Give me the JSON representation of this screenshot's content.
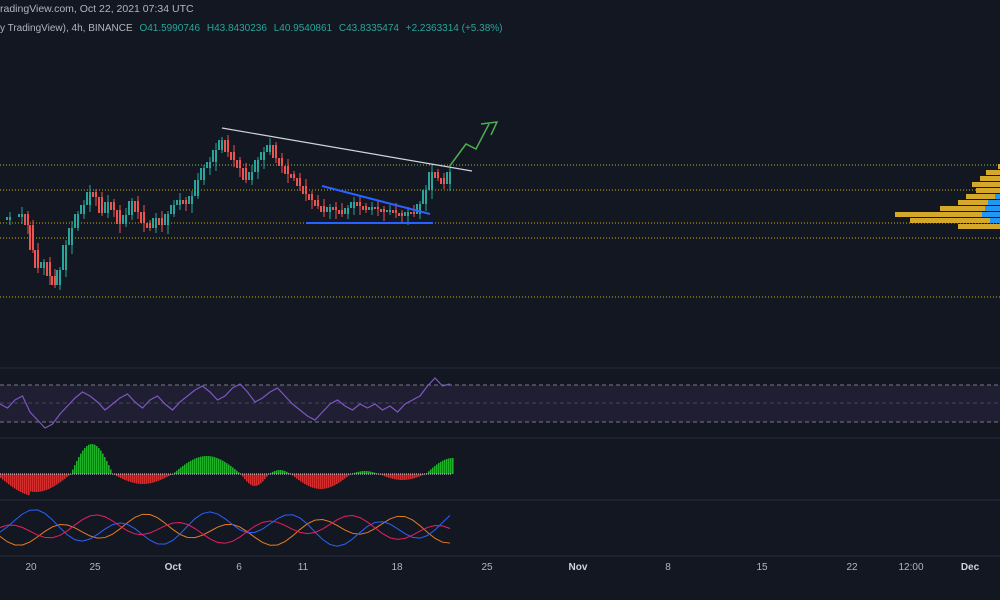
{
  "header": {
    "watermark_text": "radingView.com, Oct 22, 2021 07:34 UTC",
    "symbol_line": "y TradingView), 4h, BINANCE",
    "ohlc": {
      "open_label": "O",
      "open": "41.5990746",
      "high_label": "H",
      "high": "43.8430236",
      "low_label": "L",
      "low": "40.9540861",
      "close_label": "C",
      "close": "43.8335474",
      "change": "+2.2363314 (+5.38%)"
    }
  },
  "colors": {
    "background": "#131722",
    "up": "#26a69a",
    "down": "#ef5350",
    "trendline_white": "#d1d4dc",
    "trendline_blue": "#2962ff",
    "projection": "#4caf50",
    "hline_green": "#8bc34a",
    "hline_yellow": "#c8b400",
    "rsi_line": "#7e57c2",
    "rsi_band": "#2a2440",
    "vp_yellow": "#d4a82a",
    "vp_blue": "#2196f3",
    "macd_green": "#21b02a",
    "macd_red": "#d32f2f",
    "osc_orange": "#e67e22",
    "osc_blue": "#2962ff",
    "osc_pink": "#e91e63"
  },
  "x_axis": {
    "labels": [
      {
        "text": "20",
        "bold": false
      },
      {
        "text": "25",
        "bold": false
      },
      {
        "text": "Oct",
        "bold": true
      },
      {
        "text": "6",
        "bold": false
      },
      {
        "text": "11",
        "bold": false
      },
      {
        "text": "18",
        "bold": false
      },
      {
        "text": "25",
        "bold": false
      },
      {
        "text": "Nov",
        "bold": true
      },
      {
        "text": "8",
        "bold": false
      },
      {
        "text": "15",
        "bold": false
      },
      {
        "text": "22",
        "bold": false
      },
      {
        "text": "12:00",
        "bold": false
      },
      {
        "text": "Dec",
        "bold": true
      }
    ]
  }
}
